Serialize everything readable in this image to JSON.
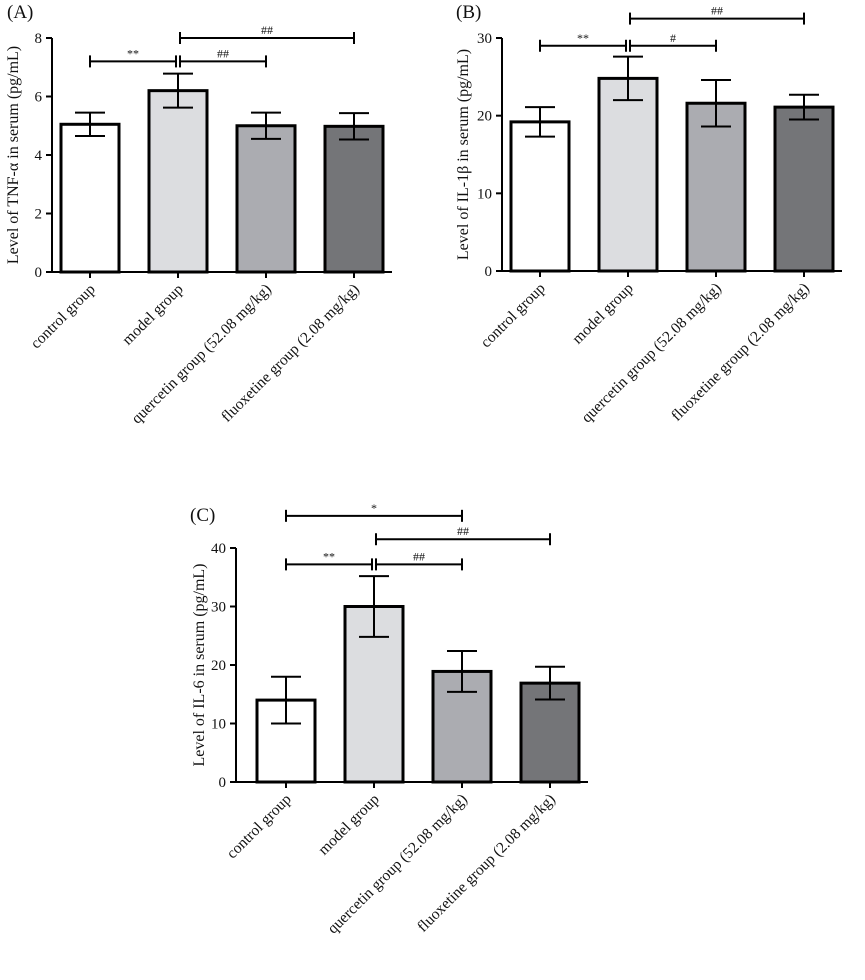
{
  "chart_data": [
    {
      "type": "bar",
      "panel_label": "(A)",
      "title": "",
      "xlabel": "",
      "ylabel": "Level of TNF-α in serum (pg/mL)",
      "ylim": [
        0,
        8
      ],
      "yticks": [
        0,
        2,
        4,
        6,
        8
      ],
      "categories": [
        "control group",
        "model group",
        "quercetin group (52.08 mg/kg)",
        "fluoxetine group (2.08 mg/kg)"
      ],
      "values": [
        5.05,
        6.2,
        5.0,
        4.98
      ],
      "error": [
        0.4,
        0.58,
        0.45,
        0.45
      ],
      "bar_colors": [
        "#ffffff",
        "#dcdde0",
        "#abacb1",
        "#747578"
      ],
      "significance": [
        {
          "from": 0,
          "to": 1,
          "label": "**",
          "level": 7.2
        },
        {
          "from": 1,
          "to": 2,
          "label": "##",
          "level": 7.2
        },
        {
          "from": 1,
          "to": 3,
          "label": "##",
          "level": 8.0
        }
      ]
    },
    {
      "type": "bar",
      "panel_label": "(B)",
      "title": "",
      "xlabel": "",
      "ylabel": "Level of IL-1β in serum (pg/mL)",
      "ylim": [
        0,
        30
      ],
      "yticks": [
        0,
        10,
        20,
        30
      ],
      "categories": [
        "control group",
        "model group",
        "quercetin group (52.08 mg/kg)",
        "fluoxetine group (2.08 mg/kg)"
      ],
      "values": [
        19.2,
        24.8,
        21.6,
        21.1
      ],
      "error": [
        1.9,
        2.8,
        3.0,
        1.6
      ],
      "bar_colors": [
        "#ffffff",
        "#dcdde0",
        "#abacb1",
        "#747578"
      ],
      "significance": [
        {
          "from": 0,
          "to": 1,
          "label": "**",
          "level": 29.0
        },
        {
          "from": 1,
          "to": 2,
          "label": "#",
          "level": 29.0
        },
        {
          "from": 1,
          "to": 3,
          "label": "##",
          "level": 32.5
        }
      ]
    },
    {
      "type": "bar",
      "panel_label": "(C)",
      "title": "",
      "xlabel": "",
      "ylabel": "Level of IL-6 in serum (pg/mL)",
      "ylim": [
        0,
        40
      ],
      "yticks": [
        0,
        10,
        20,
        30,
        40
      ],
      "categories": [
        "control group",
        "model group",
        "quercetin group (52.08 mg/kg)",
        "fluoxetine group (2.08 mg/kg)"
      ],
      "values": [
        14.0,
        30.0,
        18.9,
        16.9
      ],
      "error": [
        4.0,
        5.2,
        3.5,
        2.8
      ],
      "bar_colors": [
        "#ffffff",
        "#dcdde0",
        "#abacb1",
        "#747578"
      ],
      "significance": [
        {
          "from": 0,
          "to": 1,
          "label": "**",
          "level": 37.2
        },
        {
          "from": 1,
          "to": 2,
          "label": "##",
          "level": 37.2
        },
        {
          "from": 1,
          "to": 3,
          "label": "##",
          "level": 41.5
        },
        {
          "from": 0,
          "to": 2,
          "label": "*",
          "level": 45.5
        }
      ]
    }
  ]
}
